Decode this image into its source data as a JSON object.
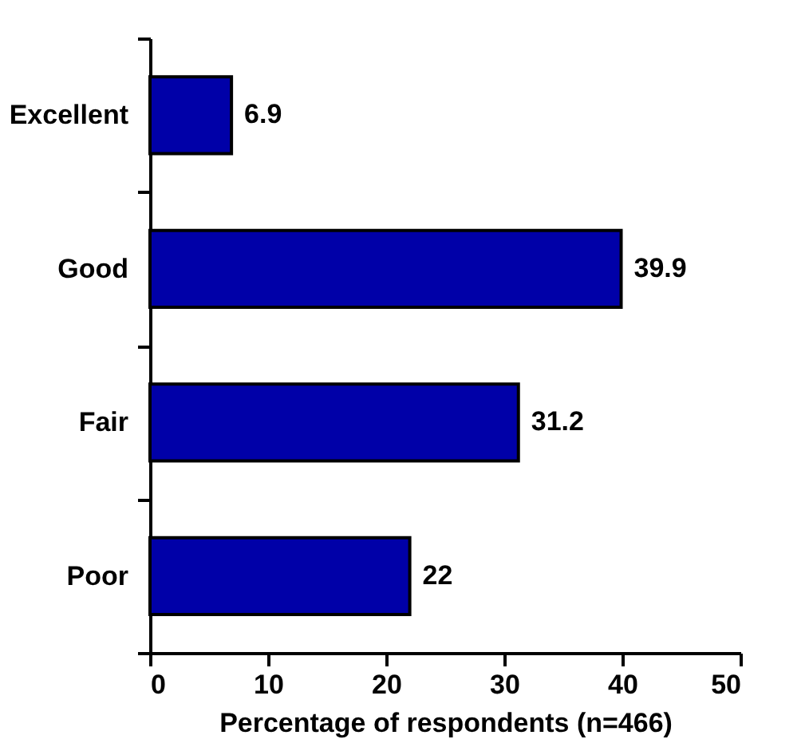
{
  "chart_data": {
    "type": "bar",
    "orientation": "horizontal",
    "xlabel": "Percentage of respondents (n=466)",
    "categories": [
      "Excellent",
      "Good",
      "Fair",
      "Poor"
    ],
    "values": [
      6.9,
      39.9,
      31.2,
      22
    ],
    "color": "#0000a8",
    "xlim": [
      0,
      50
    ],
    "xticks": [
      0,
      10,
      20,
      30,
      40,
      50
    ],
    "grid": false,
    "data_labels": true
  }
}
